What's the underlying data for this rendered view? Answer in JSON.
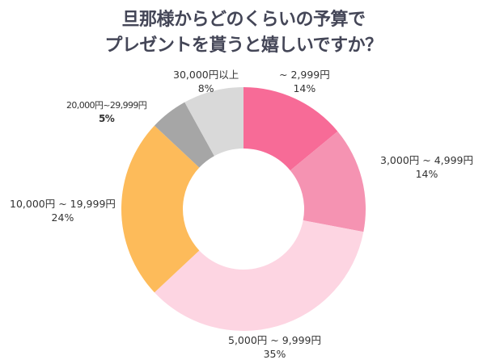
{
  "chart_data": {
    "type": "pie",
    "title_lines": [
      "旦那様からどのくらいの予算で",
      "プレゼントを貰うと嬉しいですか？"
    ],
    "donut": true,
    "categories": [
      "~ 2,999円",
      "3,000円 ~ 4,999円",
      "5,000円 ~ 9,999円",
      "10,000円 ~ 19,999円",
      "20,000円~29,999円",
      "30,000円以上"
    ],
    "values": [
      14,
      14,
      35,
      24,
      5,
      8
    ],
    "labels": [
      "14%",
      "14%",
      "35%",
      "24%",
      "5%",
      "8%"
    ],
    "colors": [
      "#f76b97",
      "#f593b2",
      "#fdd5e2",
      "#fdbb5a",
      "#a6a6a6",
      "#d9d9d9"
    ],
    "start": "12 o'clock, clockwise"
  }
}
